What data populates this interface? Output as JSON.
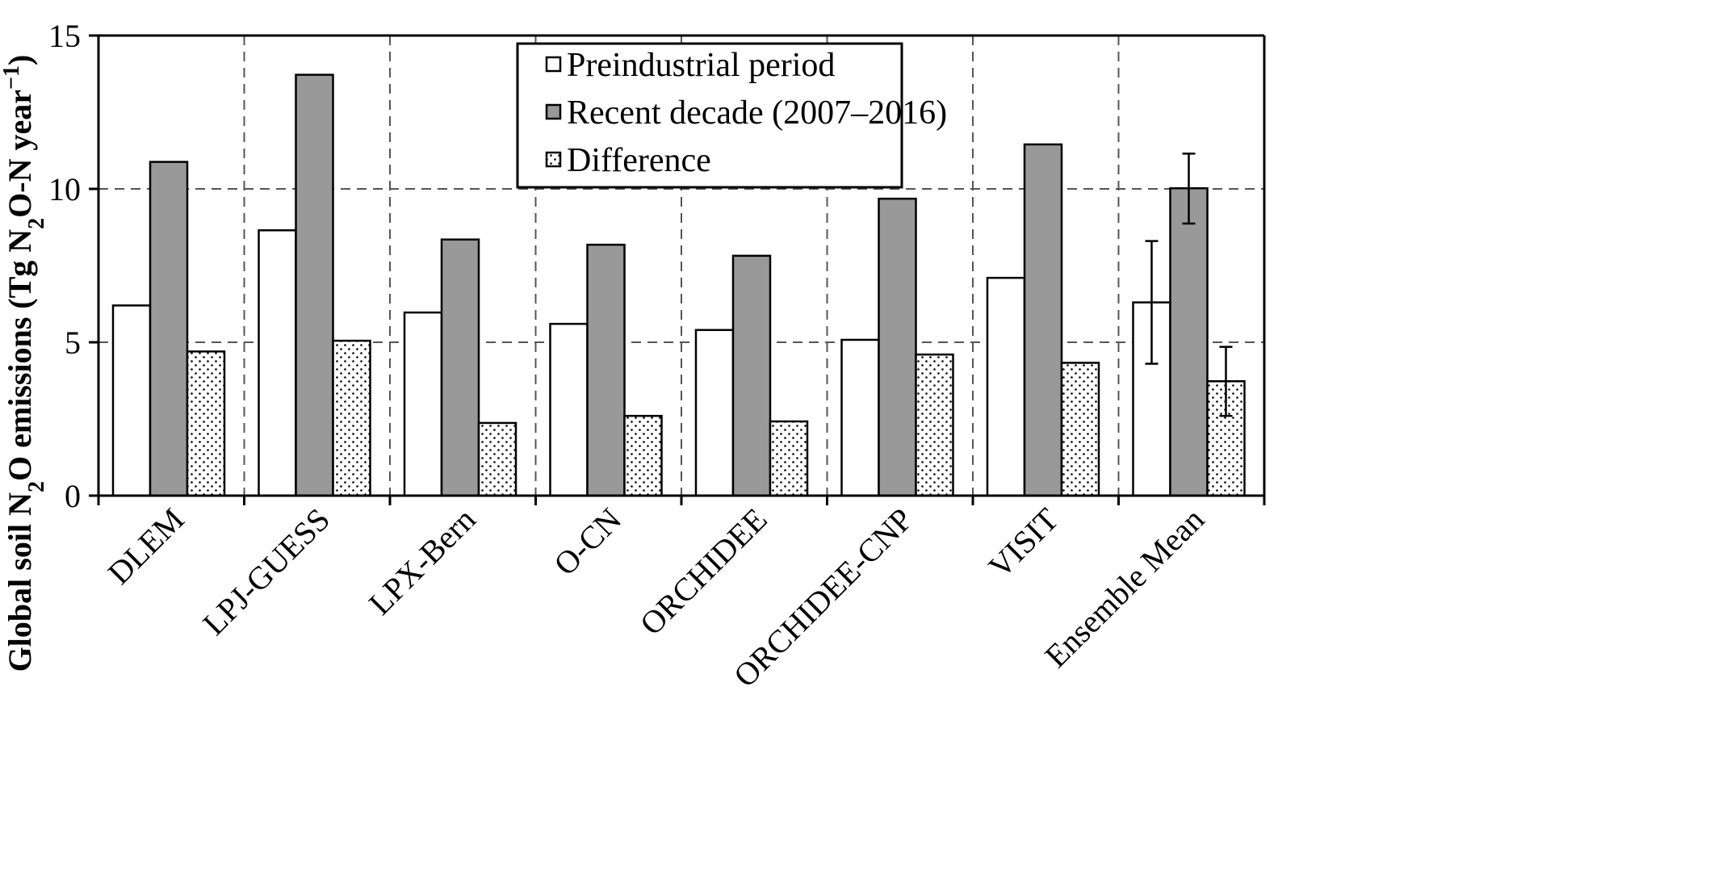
{
  "chart_data": {
    "type": "bar",
    "categories": [
      "DLEM",
      "LPJ-GUESS",
      "LPX-Bern",
      "O-CN",
      "ORCHIDEE",
      "ORCHIDEE-CNP",
      "VISIT",
      "Ensemble Mean"
    ],
    "series": [
      {
        "name": "Preindustrial period",
        "fill": "white",
        "values": [
          6.2,
          8.65,
          5.97,
          5.6,
          5.4,
          5.08,
          7.1,
          6.3
        ]
      },
      {
        "name": "Recent decade (2007–2016)",
        "fill": "gray",
        "values": [
          10.88,
          13.72,
          8.35,
          8.18,
          7.82,
          9.68,
          11.45,
          10.02
        ]
      },
      {
        "name": "Difference",
        "fill": "dotted",
        "values": [
          4.7,
          5.05,
          2.37,
          2.6,
          2.42,
          4.6,
          4.33,
          3.73
        ]
      }
    ],
    "error_bars": {
      "category": "Ensemble Mean",
      "ranges": [
        {
          "series": "Preindustrial period",
          "low": 4.3,
          "high": 8.3
        },
        {
          "series": "Recent decade (2007–2016)",
          "low": 8.87,
          "high": 11.15
        },
        {
          "series": "Difference",
          "low": 2.6,
          "high": 4.85
        }
      ]
    },
    "ylabel_parts": [
      "Global soil N",
      "2",
      "O emissions (Tg N",
      "2",
      "O-N year",
      "−1",
      ")"
    ],
    "ylim": [
      0,
      15
    ],
    "yticks": [
      "0",
      "5",
      "10",
      "15"
    ],
    "grid": "dashed",
    "legend_position": "top-center",
    "colors": {
      "gray": "#999999",
      "white": "#ffffff",
      "stroke": "#000000",
      "grid": "#555555"
    }
  }
}
